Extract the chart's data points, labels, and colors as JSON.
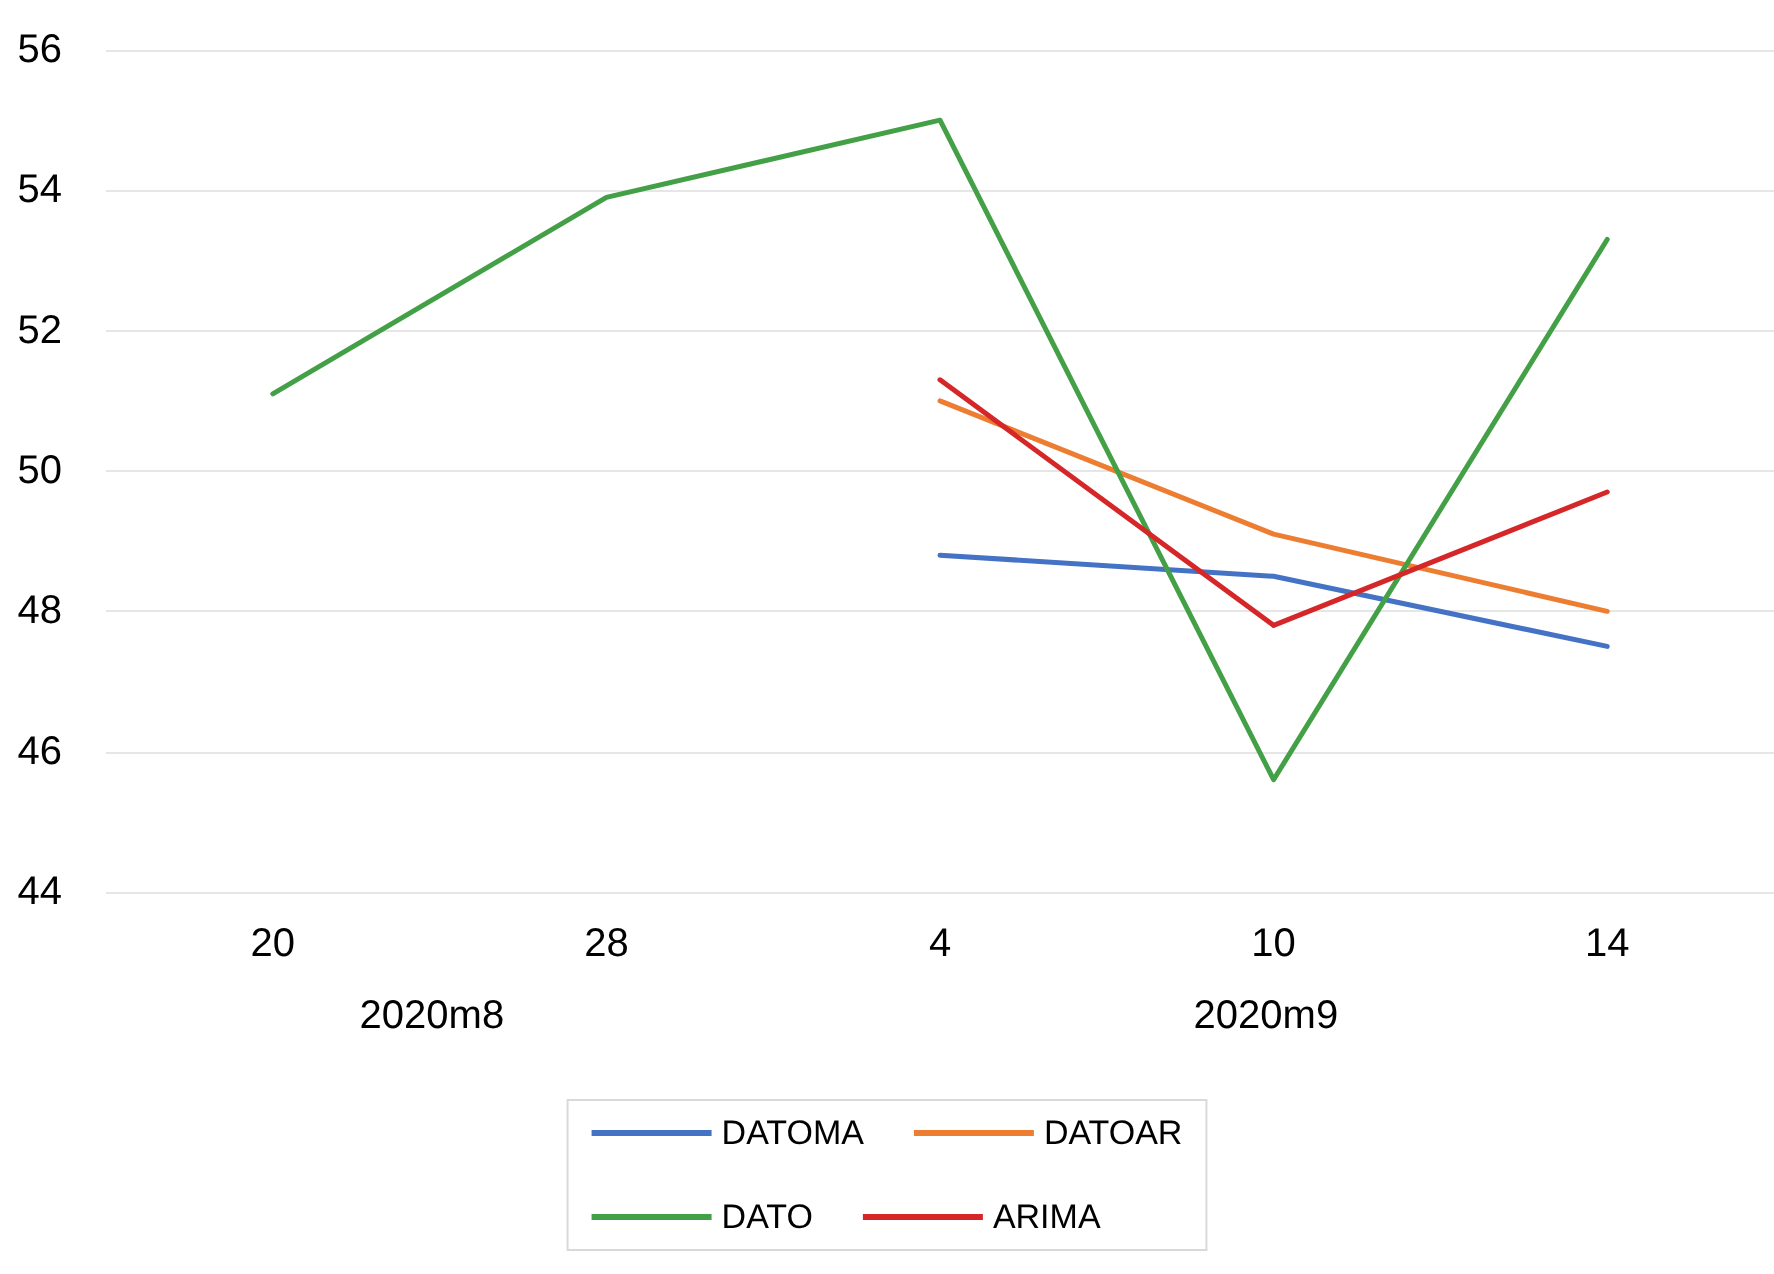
{
  "chart_data": {
    "type": "line",
    "categories": [
      "20",
      "28",
      "4",
      "10",
      "14"
    ],
    "series": [
      {
        "name": "DATOMA",
        "color": "#4472c4",
        "values": [
          null,
          null,
          48.8,
          48.5,
          47.5
        ]
      },
      {
        "name": "DATOAR",
        "color": "#ed7d31",
        "values": [
          null,
          null,
          51.0,
          49.1,
          48.0
        ]
      },
      {
        "name": "DATO",
        "color": "#43a047",
        "values": [
          51.1,
          53.9,
          55.0,
          45.6,
          53.3
        ]
      },
      {
        "name": "ARIMA",
        "color": "#d62728",
        "values": [
          null,
          null,
          51.3,
          47.8,
          49.7
        ]
      }
    ],
    "annotations": [
      "2020m8",
      "2020m9"
    ],
    "ylim": [
      44,
      56
    ],
    "yticks": [
      44,
      46,
      48,
      50,
      52,
      54,
      56
    ],
    "grid": "y",
    "legend": "bottom",
    "marker": "none",
    "line_style": "solid"
  }
}
